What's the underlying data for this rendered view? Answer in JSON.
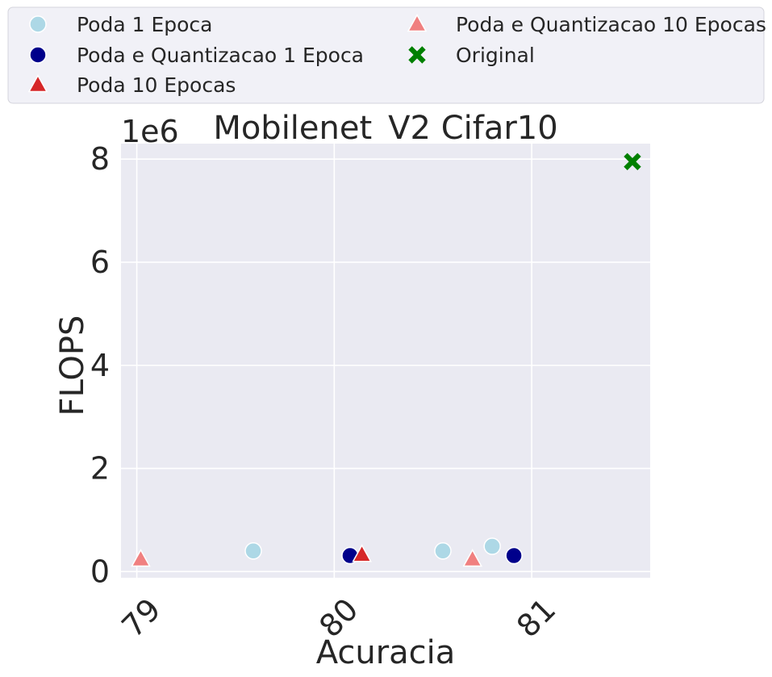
{
  "chart_data": {
    "type": "scatter",
    "title": "Mobilenet_V2 Cifar10",
    "xlabel": "Acuracia",
    "ylabel": "FLOPS",
    "y_offset_label": "1e6",
    "xlim": [
      78.92,
      81.6
    ],
    "ylim": [
      -0.12,
      8.3
    ],
    "xticks": [
      79,
      80,
      81
    ],
    "xtick_labels": [
      "79",
      "80",
      "81"
    ],
    "yticks": [
      0,
      2,
      4,
      6,
      8
    ],
    "ytick_labels": [
      "0",
      "2",
      "4",
      "6",
      "8"
    ],
    "y_scale_factor": 1000000,
    "grid": true,
    "legend_placement": "top (above plot, two columns)",
    "background_color": "#eaeaf2",
    "grid_color": "#ffffff",
    "series": [
      {
        "name": "Poda 1 Epoca",
        "marker": "circle",
        "color": "#add8e6",
        "points": [
          {
            "x": 79.59,
            "y": 0.4
          },
          {
            "x": 80.55,
            "y": 0.4
          },
          {
            "x": 80.8,
            "y": 0.49
          }
        ]
      },
      {
        "name": "Poda e Quantizacao 1 Epoca",
        "marker": "circle",
        "color": "#00008b",
        "points": [
          {
            "x": 80.08,
            "y": 0.31
          },
          {
            "x": 80.91,
            "y": 0.31
          }
        ]
      },
      {
        "name": "Poda 10 Epocas",
        "marker": "triangle",
        "color": "#d62728",
        "points": [
          {
            "x": 80.14,
            "y": 0.33
          }
        ]
      },
      {
        "name": "Poda e Quantizacao 10 Epocas",
        "marker": "triangle",
        "color": "#f08080",
        "points": [
          {
            "x": 79.02,
            "y": 0.24
          },
          {
            "x": 80.7,
            "y": 0.24
          }
        ]
      },
      {
        "name": "Original",
        "marker": "x",
        "color": "#008000",
        "points": [
          {
            "x": 81.51,
            "y": 7.95
          }
        ]
      }
    ]
  }
}
